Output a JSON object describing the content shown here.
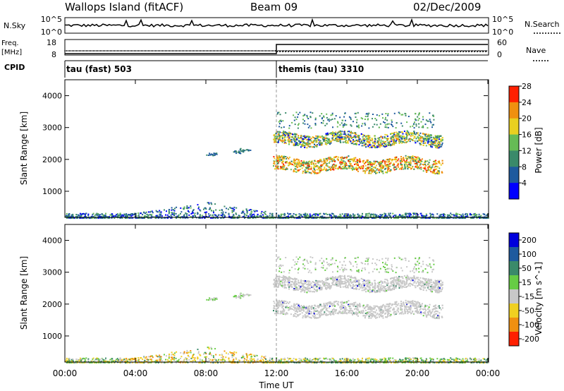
{
  "header": {
    "station": "Wallops Island (fitACF)",
    "beam": "Beam 09",
    "date": "02/Dec/2009"
  },
  "top_panels": {
    "nsky_label": "N.Sky",
    "nsky_ticks": [
      "10^5",
      "10^0"
    ],
    "nsearch_label": "N.Search",
    "nsearch_ticks": [
      "10^5",
      "10^0"
    ],
    "freq_label_1": "Freq.",
    "freq_label_2": "[MHz]",
    "freq_ticks": [
      "18",
      "8"
    ],
    "nave_label": "Nave",
    "nave_ticks": [
      "60",
      "0"
    ],
    "cpid_label": "CPID",
    "cpid_modes": [
      {
        "label": "tau (fast) 503",
        "start_hour": 0,
        "end_hour": 12
      },
      {
        "label": "themis (tau) 3310",
        "start_hour": 12,
        "end_hour": 24
      }
    ]
  },
  "chart_data": [
    {
      "type": "heatmap",
      "name": "power",
      "ylabel": "Slant Range [km]",
      "xlim": [
        0,
        24
      ],
      "ylim": [
        180,
        4500
      ],
      "yticks": [
        1000,
        2000,
        3000,
        4000
      ],
      "colorbar": {
        "label": "Power [dB]",
        "ticks": [
          4,
          8,
          12,
          16,
          20,
          24,
          28
        ],
        "colors": [
          "#0000ff",
          "#1e5a9e",
          "#3a8a6a",
          "#66bb55",
          "#e8d020",
          "#f09010",
          "#ff2000"
        ]
      },
      "features": [
        {
          "desc": "near range clutter",
          "hours": [
            0,
            24
          ],
          "range_km": [
            180,
            600
          ]
        },
        {
          "desc": "main scatter band",
          "hours": [
            12,
            21.5
          ],
          "range_km": [
            1600,
            2900
          ]
        }
      ]
    },
    {
      "type": "heatmap",
      "name": "velocity",
      "xlabel": "Time UT",
      "ylabel": "Slant Range [km]",
      "xlim": [
        0,
        24
      ],
      "ylim": [
        180,
        4500
      ],
      "yticks": [
        1000,
        2000,
        3000,
        4000
      ],
      "xticks": [
        "00:00",
        "04:00",
        "08:00",
        "12:00",
        "16:00",
        "20:00",
        "00:00"
      ],
      "colorbar": {
        "label": "Velocity [m s^-1]",
        "ticks": [
          "200",
          "100",
          "50",
          "15",
          "-15",
          "-50",
          "-100",
          "-200"
        ],
        "colors": [
          "#0000dd",
          "#1e5a9e",
          "#3a8a6a",
          "#66cc44",
          "#c8c8c8",
          "#f0d020",
          "#f09010",
          "#ff2000"
        ]
      }
    }
  ],
  "colors": {
    "dash_line": "#999999"
  }
}
